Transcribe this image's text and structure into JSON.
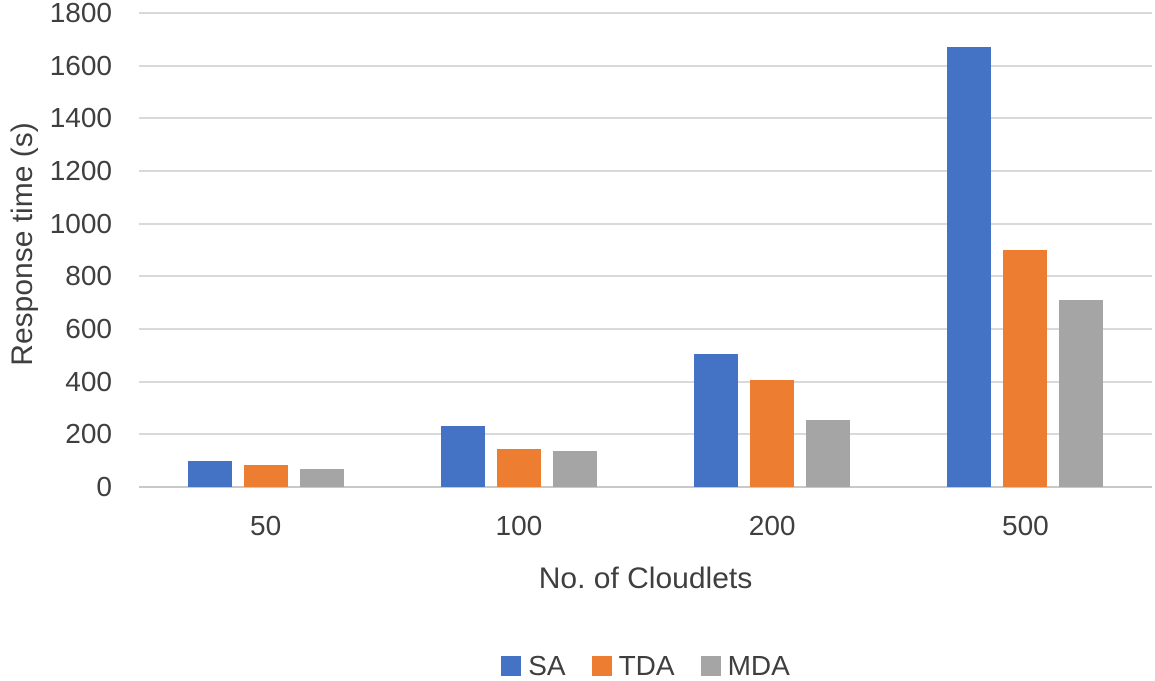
{
  "chart_data": {
    "type": "bar",
    "categories": [
      "50",
      "100",
      "200",
      "500"
    ],
    "series": [
      {
        "name": "SA",
        "color": "#4472C4",
        "values": [
          100,
          230,
          505,
          1670
        ]
      },
      {
        "name": "TDA",
        "color": "#ED7D31",
        "values": [
          82,
          145,
          405,
          900
        ]
      },
      {
        "name": "MDA",
        "color": "#A5A5A5",
        "values": [
          67,
          135,
          255,
          710
        ]
      }
    ],
    "title": "",
    "xlabel": "No. of Cloudlets",
    "ylabel": "Response time (s)",
    "ylim": [
      0,
      1800
    ],
    "ytick_step": 200,
    "grid": true,
    "legend_position": "bottom"
  },
  "colors": {
    "text": "#3F3F3F",
    "gridline": "#D9D9D9",
    "axis_line": "#C9C9C9",
    "background": "#FFFFFF"
  }
}
